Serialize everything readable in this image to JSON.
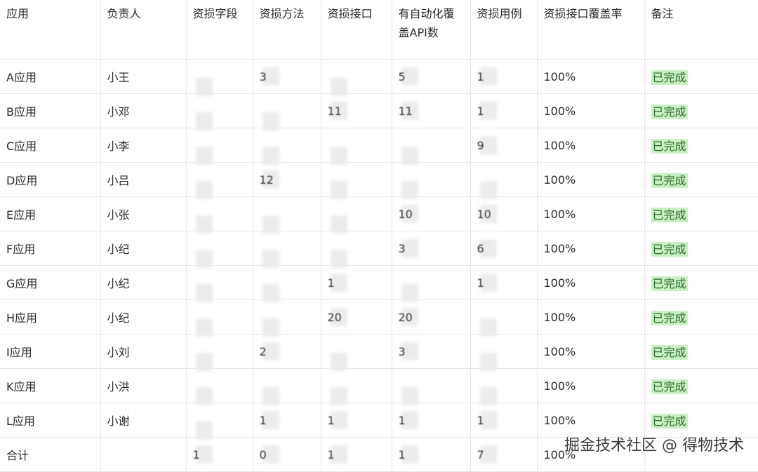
{
  "headers": [
    "应用",
    "负责人",
    "资损字段",
    "资损方法",
    "资损接口",
    "有自动化覆盖API数",
    "资损用例",
    "资损接口覆盖率",
    "备注"
  ],
  "rows": [
    {
      "app": "A应用",
      "owner": "小王",
      "field": "",
      "method": "3",
      "iface": "",
      "api": "5",
      "cases": "1",
      "rate": "100%",
      "note": "已完成"
    },
    {
      "app": "B应用",
      "owner": "小邓",
      "field": "",
      "method": "",
      "iface": "11",
      "api": "11",
      "cases": "1",
      "rate": "100%",
      "note": "已完成"
    },
    {
      "app": "C应用",
      "owner": "小李",
      "field": "",
      "method": "",
      "iface": "",
      "api": "",
      "cases": "9",
      "rate": "100%",
      "note": "已完成"
    },
    {
      "app": "D应用",
      "owner": "小吕",
      "field": "",
      "method": "12",
      "iface": "",
      "api": "",
      "cases": "",
      "rate": "100%",
      "note": "已完成"
    },
    {
      "app": "E应用",
      "owner": "小张",
      "field": "",
      "method": "",
      "iface": "",
      "api": "10",
      "cases": "10",
      "rate": "100%",
      "note": "已完成"
    },
    {
      "app": "F应用",
      "owner": "小纪",
      "field": "",
      "method": "",
      "iface": "",
      "api": "3",
      "cases": "6",
      "rate": "100%",
      "note": "已完成"
    },
    {
      "app": "G应用",
      "owner": "小纪",
      "field": "",
      "method": "",
      "iface": "1",
      "api": "",
      "cases": "1",
      "rate": "100%",
      "note": "已完成"
    },
    {
      "app": "H应用",
      "owner": "小纪",
      "field": "",
      "method": "",
      "iface": "20",
      "api": "20",
      "cases": "",
      "rate": "100%",
      "note": "已完成"
    },
    {
      "app": "I应用",
      "owner": "小刘",
      "field": "",
      "method": "2",
      "iface": "",
      "api": "3",
      "cases": "",
      "rate": "100%",
      "note": "已完成"
    },
    {
      "app": "K应用",
      "owner": "小洪",
      "field": "",
      "method": "",
      "iface": "",
      "api": "",
      "cases": "",
      "rate": "100%",
      "note": "已完成"
    },
    {
      "app": "L应用",
      "owner": "小谢",
      "field": "",
      "method": "1",
      "iface": "1",
      "api": "1",
      "cases": "1",
      "rate": "100%",
      "note": "已完成"
    }
  ],
  "total": {
    "app": "合计",
    "owner": "",
    "field": "1",
    "method": "0",
    "iface": "1",
    "api": "1",
    "cases": "7",
    "rate": "100%",
    "note": ""
  },
  "watermark": "掘金技术社区 @ 得物技术",
  "colors": {
    "done_bg": "#c9f0c4",
    "border": "#e6e6e6"
  }
}
